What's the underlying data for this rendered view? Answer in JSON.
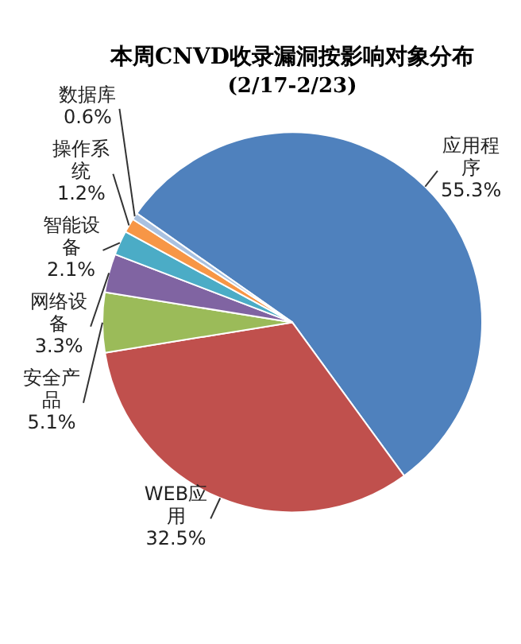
{
  "chart_data": {
    "type": "pie",
    "title": "本周CNVD收录漏洞按影响对象分布",
    "subtitle": "(2/17-2/23)",
    "categories": [
      "应用程序",
      "WEB应用",
      "安全产品",
      "网络设备",
      "智能设备",
      "操作系统",
      "数据库"
    ],
    "values": [
      55.3,
      32.5,
      5.1,
      3.3,
      2.1,
      1.2,
      0.6
    ],
    "value_labels": [
      "55.3%",
      "32.5%",
      "5.1%",
      "3.3%",
      "2.1%",
      "1.2%",
      "0.6%"
    ],
    "colors": [
      "#4f81bd",
      "#c0504d",
      "#9bbb59",
      "#8064a2",
      "#4bacc6",
      "#f79646",
      "#a9c1e0"
    ],
    "legend": false
  }
}
